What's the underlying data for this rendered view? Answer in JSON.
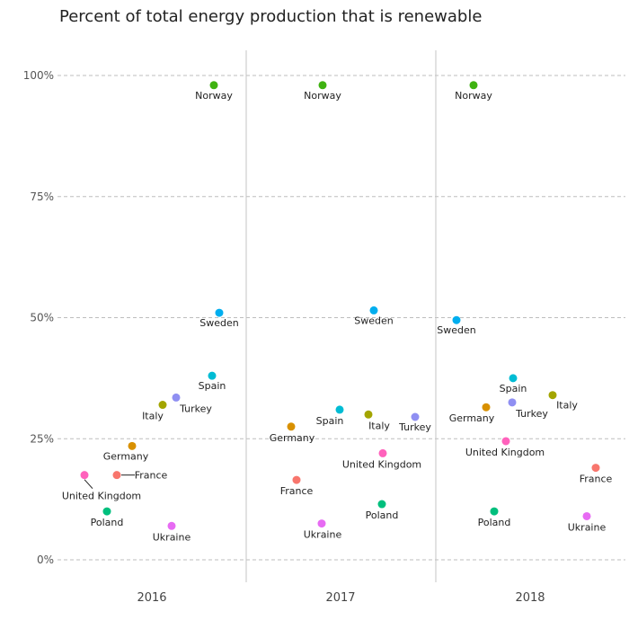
{
  "chart_data": {
    "type": "scatter",
    "title": "Percent of total energy production that is renewable",
    "xlabel": "",
    "ylabel": "",
    "categories": [
      "2016",
      "2017",
      "2018"
    ],
    "y_ticks": [
      "0%",
      "25%",
      "50%",
      "75%",
      "100%"
    ],
    "ylim": [
      0,
      100
    ],
    "grid": true,
    "legend": "none",
    "countries": [
      {
        "name": "Norway",
        "color": "#3fb211",
        "values": [
          98,
          98,
          98
        ]
      },
      {
        "name": "Sweden",
        "color": "#00aeef",
        "values": [
          51,
          51.5,
          49.5
        ]
      },
      {
        "name": "Spain",
        "color": "#00bcd4",
        "values": [
          38,
          31,
          37.5
        ]
      },
      {
        "name": "Turkey",
        "color": "#8f8ff2",
        "values": [
          33.5,
          29.5,
          32.5
        ]
      },
      {
        "name": "Italy",
        "color": "#a3a500",
        "values": [
          32,
          30,
          34
        ]
      },
      {
        "name": "Germany",
        "color": "#d89000",
        "values": [
          23.5,
          27.5,
          31.5
        ]
      },
      {
        "name": "France",
        "color": "#f8766d",
        "values": [
          17.5,
          16.5,
          19
        ]
      },
      {
        "name": "United Kingdom",
        "color": "#ff62bc",
        "values": [
          17.5,
          22,
          24.5
        ]
      },
      {
        "name": "Poland",
        "color": "#00bf7d",
        "values": [
          10,
          11.5,
          10
        ]
      },
      {
        "name": "Ukraine",
        "color": "#e76bf3",
        "values": [
          7,
          7.5,
          9
        ]
      }
    ]
  }
}
